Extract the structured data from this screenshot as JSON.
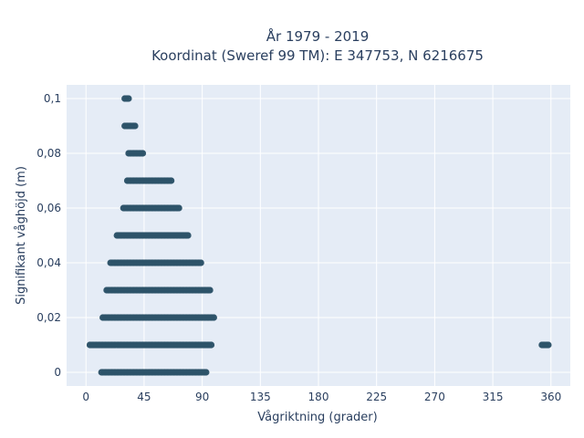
{
  "chart_data": {
    "type": "scatter",
    "title_line1": "År 1979 - 2019",
    "title_line2": "Koordinat (Sweref 99 TM): E 347753, N 6216675",
    "xlabel": "Vågriktning (grader)",
    "ylabel": "Signifikant våghöjd (m)",
    "xlim": [
      -15,
      375
    ],
    "ylim": [
      -0.005,
      0.105
    ],
    "xticks": [
      0,
      45,
      90,
      135,
      180,
      225,
      270,
      315,
      360
    ],
    "xtick_labels": [
      "0",
      "45",
      "90",
      "135",
      "180",
      "225",
      "270",
      "315",
      "360"
    ],
    "yticks": [
      0,
      0.02,
      0.04,
      0.06,
      0.08,
      0.1
    ],
    "ytick_labels": [
      "0",
      "0,02",
      "0,04",
      "0,06",
      "0,08",
      "0,1"
    ],
    "grid": true,
    "marker_color": "#2e5369",
    "plot_bg": "#e5ecf6",
    "points": [
      {
        "y": 0.1,
        "x_min": 30,
        "x_max": 33
      },
      {
        "y": 0.09,
        "x_min": 30,
        "x_max": 38
      },
      {
        "y": 0.08,
        "x_min": 33,
        "x_max": 44
      },
      {
        "y": 0.07,
        "x_min": 32,
        "x_max": 66
      },
      {
        "y": 0.06,
        "x_min": 29,
        "x_max": 72
      },
      {
        "y": 0.05,
        "x_min": 24,
        "x_max": 79
      },
      {
        "y": 0.04,
        "x_min": 19,
        "x_max": 89
      },
      {
        "y": 0.03,
        "x_min": 16,
        "x_max": 96
      },
      {
        "y": 0.02,
        "x_min": 13,
        "x_max": 99
      },
      {
        "y": 0.01,
        "x_min": 3,
        "x_max": 97
      },
      {
        "y": 0.01,
        "x_min": 353,
        "x_max": 358
      },
      {
        "y": 0.0,
        "x_min": 12,
        "x_max": 93
      }
    ]
  }
}
